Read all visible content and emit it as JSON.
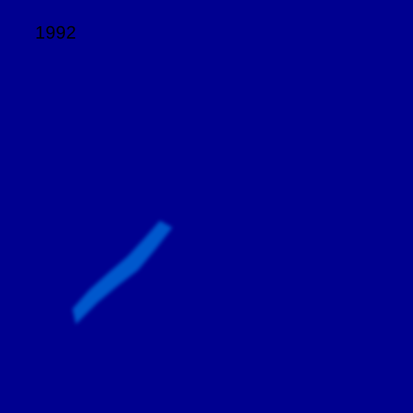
{
  "year": "1992",
  "colors": {
    "background": "#000090",
    "scale": [
      "#000090",
      "#0000ff",
      "#0060ff",
      "#00c8ff",
      "#40ffc0",
      "#c0ff40",
      "#ffd000",
      "#ff6000",
      "#d80000",
      "#900000"
    ]
  },
  "chart_data": {
    "type": "heatmap",
    "title": "1992",
    "colormap": "jet",
    "grid": false,
    "legend": "none"
  }
}
